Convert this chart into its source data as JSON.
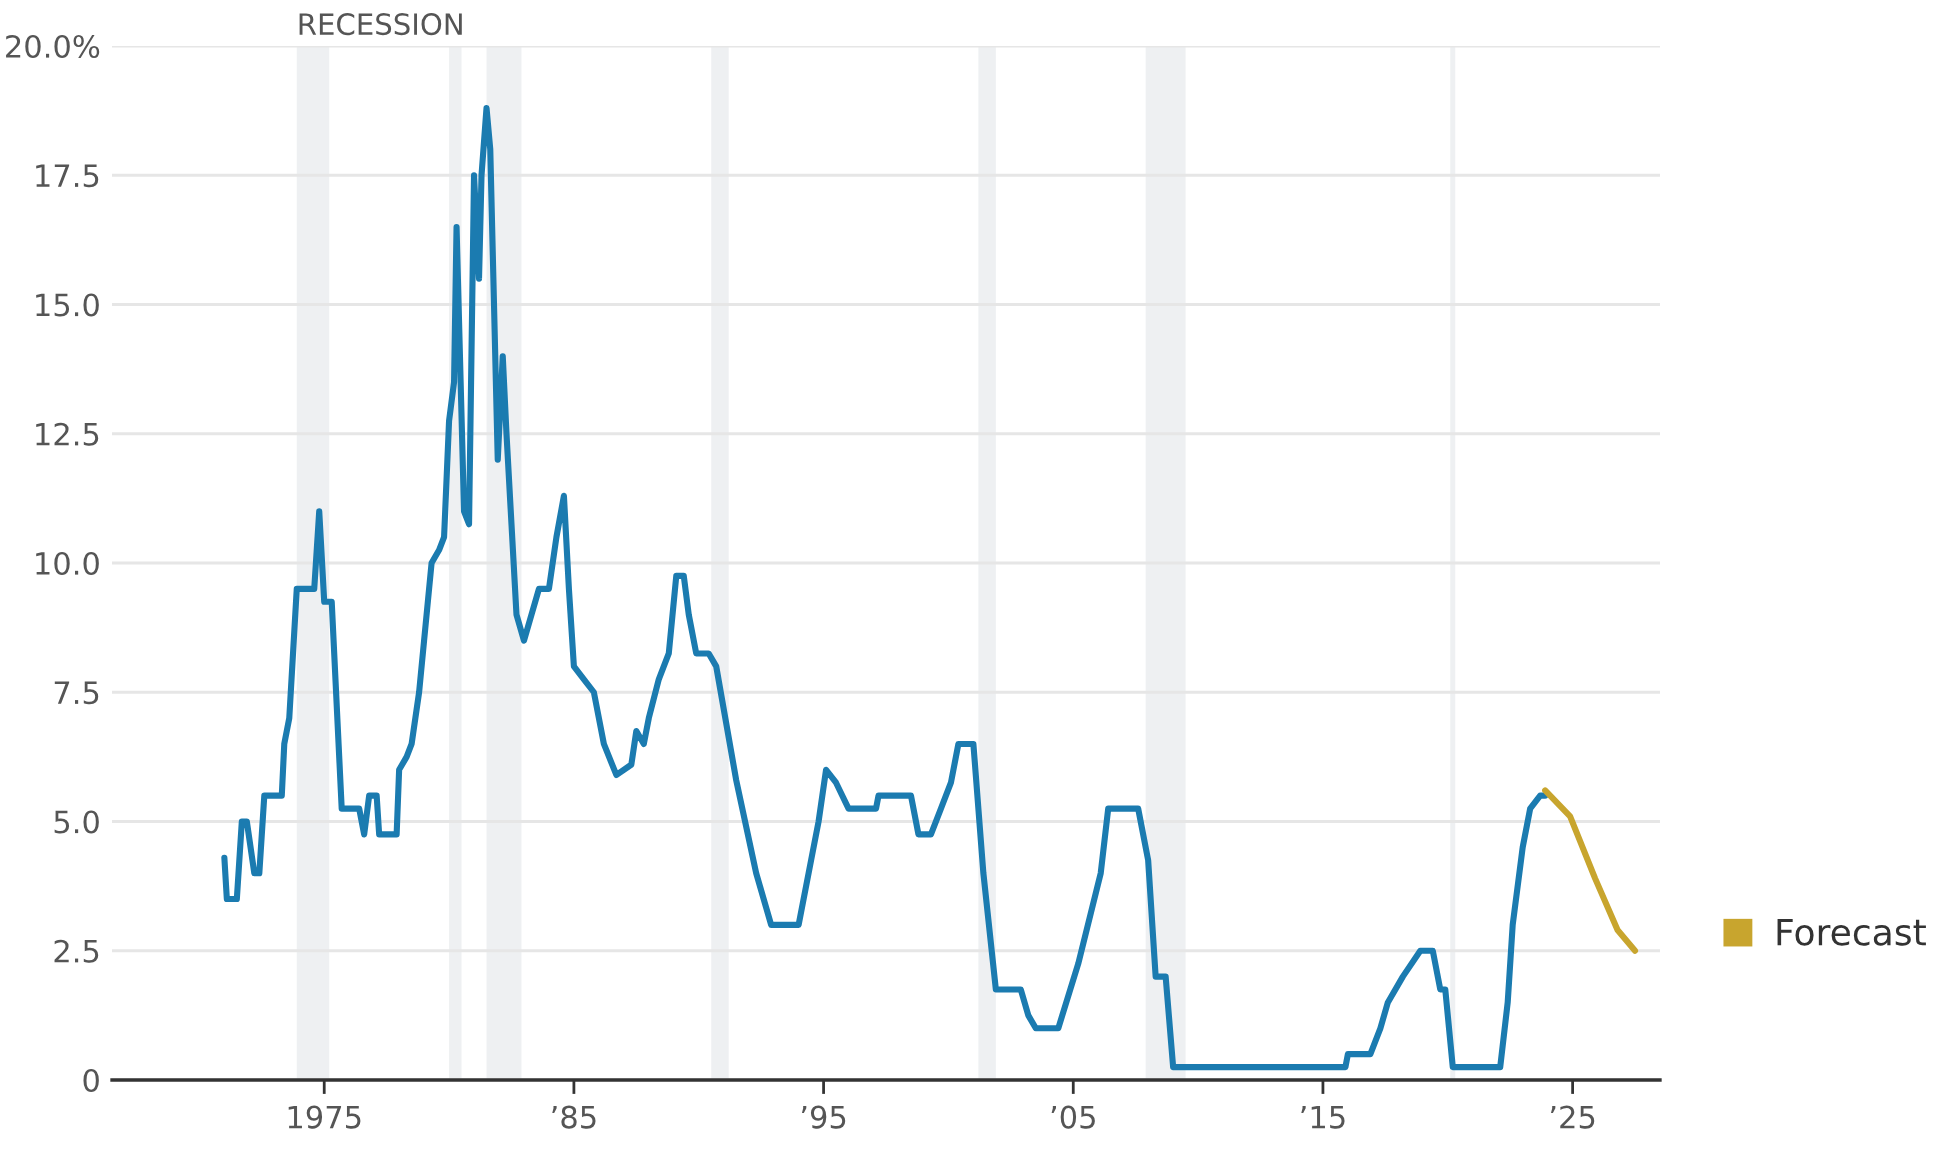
{
  "chart_data": {
    "type": "line",
    "series": [
      {
        "color": "#1b7bb0",
        "x": [
          1971.0,
          1971.1,
          1971.5,
          1971.7,
          1971.9,
          1972.2,
          1972.4,
          1972.6,
          1973.3,
          1973.4,
          1973.6,
          1973.9,
          1974.6,
          1974.8,
          1975.0,
          1975.3,
          1975.7,
          1976.4,
          1976.6,
          1976.8,
          1977.1,
          1977.2,
          1977.9,
          1978.0,
          1978.3,
          1978.5,
          1978.8,
          1979.0,
          1979.3,
          1979.6,
          1979.8,
          1980.0,
          1980.2,
          1980.3,
          1980.6,
          1980.8,
          1981.0,
          1981.2,
          1981.3,
          1981.5,
          1981.65,
          1981.95,
          1982.15,
          1982.3,
          1982.7,
          1983.0,
          1983.6,
          1984.0,
          1984.3,
          1984.6,
          1984.8,
          1985.0,
          1985.4,
          1985.8,
          1986.2,
          1986.7,
          1987.3,
          1987.5,
          1987.8,
          1988.0,
          1988.4,
          1988.8,
          1989.1,
          1989.4,
          1989.6,
          1989.9,
          1990.4,
          1990.7,
          1991.5,
          1992.3,
          1992.9,
          1994.0,
          1994.5,
          1994.8,
          1995.1,
          1995.5,
          1996.0,
          1997.1,
          1997.2,
          1998.5,
          1998.8,
          1999.3,
          1999.7,
          2000.1,
          2000.4,
          2001.0,
          2001.4,
          2001.9,
          2002.9,
          2003.2,
          2003.5,
          2004.4,
          2005.2,
          2006.1,
          2006.4,
          2007.6,
          2008.0,
          2008.3,
          2008.7,
          2009.0,
          2015.9,
          2016.0,
          2016.9,
          2017.3,
          2017.6,
          2018.2,
          2018.9,
          2019.4,
          2019.7,
          2019.9,
          2020.2,
          2022.1,
          2022.4,
          2022.6,
          2023.0,
          2023.3,
          2023.7,
          2023.9
        ],
        "values": [
          4.3,
          3.5,
          3.5,
          5.0,
          5.0,
          4.0,
          4.0,
          5.5,
          5.5,
          6.5,
          7.0,
          9.5,
          9.5,
          11.0,
          9.25,
          9.25,
          5.25,
          5.25,
          4.75,
          5.5,
          5.5,
          4.75,
          4.75,
          6.0,
          6.25,
          6.5,
          7.5,
          8.5,
          10.0,
          10.25,
          10.5,
          12.75,
          13.5,
          16.5,
          11.0,
          10.75,
          17.5,
          15.5,
          17.5,
          18.8,
          18.0,
          12.0,
          14.0,
          12.5,
          9.0,
          8.5,
          9.5,
          9.5,
          10.5,
          11.3,
          9.5,
          8.0,
          7.75,
          7.5,
          6.5,
          5.9,
          6.1,
          6.75,
          6.5,
          7.0,
          7.75,
          8.25,
          9.75,
          9.75,
          9.0,
          8.25,
          8.25,
          8.0,
          5.8,
          4.0,
          3.0,
          3.0,
          4.25,
          5.0,
          6.0,
          5.75,
          5.25,
          5.25,
          5.5,
          5.5,
          4.75,
          4.75,
          5.25,
          5.75,
          6.5,
          6.5,
          4.0,
          1.75,
          1.75,
          1.25,
          1.0,
          1.0,
          2.25,
          4.0,
          5.25,
          5.25,
          4.25,
          2.0,
          2.0,
          0.25,
          0.25,
          0.5,
          0.5,
          1.0,
          1.5,
          2.0,
          2.5,
          2.5,
          1.75,
          1.75,
          0.25,
          0.25,
          1.5,
          3.0,
          4.5,
          5.25,
          5.5,
          5.5
        ]
      },
      {
        "name": "Forecast",
        "color": "#c8a52e",
        "x": [
          2023.9,
          2024.9,
          2025.9,
          2026.8,
          2027.5
        ],
        "values": [
          5.6,
          5.1,
          3.9,
          2.9,
          2.5
        ]
      }
    ],
    "xlim": [
      1966.5,
      2028.5
    ],
    "xticks": [
      {
        "value": 1975,
        "label": "1975"
      },
      {
        "value": 1985,
        "label": "’85"
      },
      {
        "value": 1995,
        "label": "’95"
      },
      {
        "value": 2005,
        "label": "’05"
      },
      {
        "value": 2015,
        "label": "’15"
      },
      {
        "value": 2025,
        "label": "’25"
      }
    ],
    "ylim": [
      0,
      20
    ],
    "yticks": [
      0,
      {
        "value": 2.5,
        "label": "2.5"
      },
      {
        "value": 5,
        "label": "5.0"
      },
      {
        "value": 7.5,
        "label": "7.5"
      },
      {
        "value": 10,
        "label": "10.0"
      },
      {
        "value": 12.5,
        "label": "12.5"
      },
      {
        "value": 15,
        "label": "15.0"
      },
      {
        "value": 17.5,
        "label": "17.5"
      },
      {
        "value": 20,
        "label": "20.0%"
      }
    ],
    "bands": [
      {
        "axis": "x",
        "from": 1973.9,
        "to": 1975.2,
        "label": "RECESSION",
        "color": "#eef0f2"
      },
      {
        "axis": "x",
        "from": 1980.0,
        "to": 1980.5,
        "color": "#eef0f2"
      },
      {
        "axis": "x",
        "from": 1981.5,
        "to": 1982.9,
        "color": "#eef0f2"
      },
      {
        "axis": "x",
        "from": 1990.5,
        "to": 1991.2,
        "color": "#eef0f2"
      },
      {
        "axis": "x",
        "from": 2001.2,
        "to": 2001.9,
        "color": "#eef0f2"
      },
      {
        "axis": "x",
        "from": 2007.9,
        "to": 2009.5,
        "color": "#eef0f2"
      },
      {
        "axis": "x",
        "from": 2020.1,
        "to": 2020.3,
        "color": "#eef0f2"
      }
    ],
    "grid": "y",
    "legend": "right"
  }
}
